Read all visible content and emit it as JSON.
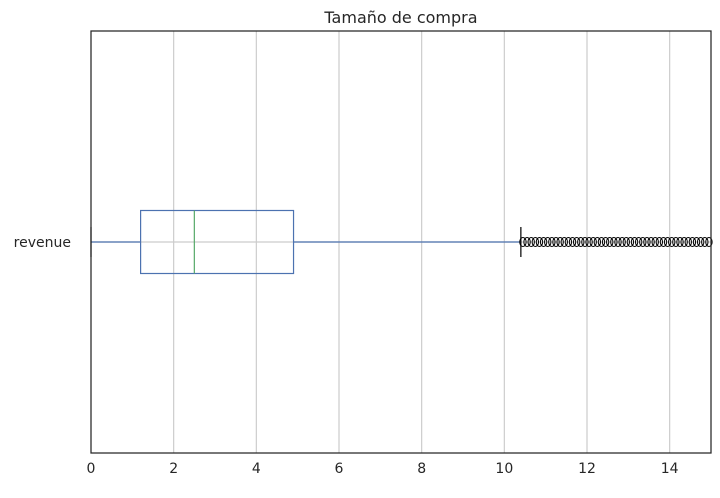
{
  "chart_data": {
    "type": "boxplot",
    "orientation": "horizontal",
    "title": "Tamaño de compra",
    "xlabel": "",
    "ylabel": "",
    "xlim": [
      0,
      15
    ],
    "xticks": [
      0,
      2,
      4,
      6,
      8,
      10,
      12,
      14
    ],
    "xtick_labels": [
      "0",
      "2",
      "4",
      "6",
      "8",
      "10",
      "12",
      "14"
    ],
    "grid": true,
    "categories": [
      "revenue"
    ],
    "series": [
      {
        "category": "revenue",
        "whisker_low": 0,
        "q1": 1.2,
        "median": 2.5,
        "q3": 4.9,
        "whisker_high": 10.4,
        "outliers": [
          10.45,
          10.55,
          10.65,
          10.75,
          10.85,
          10.95,
          11.05,
          11.15,
          11.25,
          11.35,
          11.45,
          11.55,
          11.65,
          11.75,
          11.85,
          11.95,
          12.05,
          12.15,
          12.25,
          12.35,
          12.45,
          12.55,
          12.65,
          12.75,
          12.85,
          12.95,
          13.05,
          13.15,
          13.25,
          13.35,
          13.45,
          13.55,
          13.65,
          13.75,
          13.85,
          13.95,
          14.05,
          14.15,
          14.25,
          14.35,
          14.45,
          14.55,
          14.65,
          14.75,
          14.85,
          14.95
        ]
      }
    ],
    "colors": {
      "box": "#4c72b0",
      "median": "#55a868",
      "whisker": "#4c72b0",
      "cap": "#000000",
      "flier": "#000000",
      "grid": "#cccccc",
      "axes": "#262626"
    }
  }
}
